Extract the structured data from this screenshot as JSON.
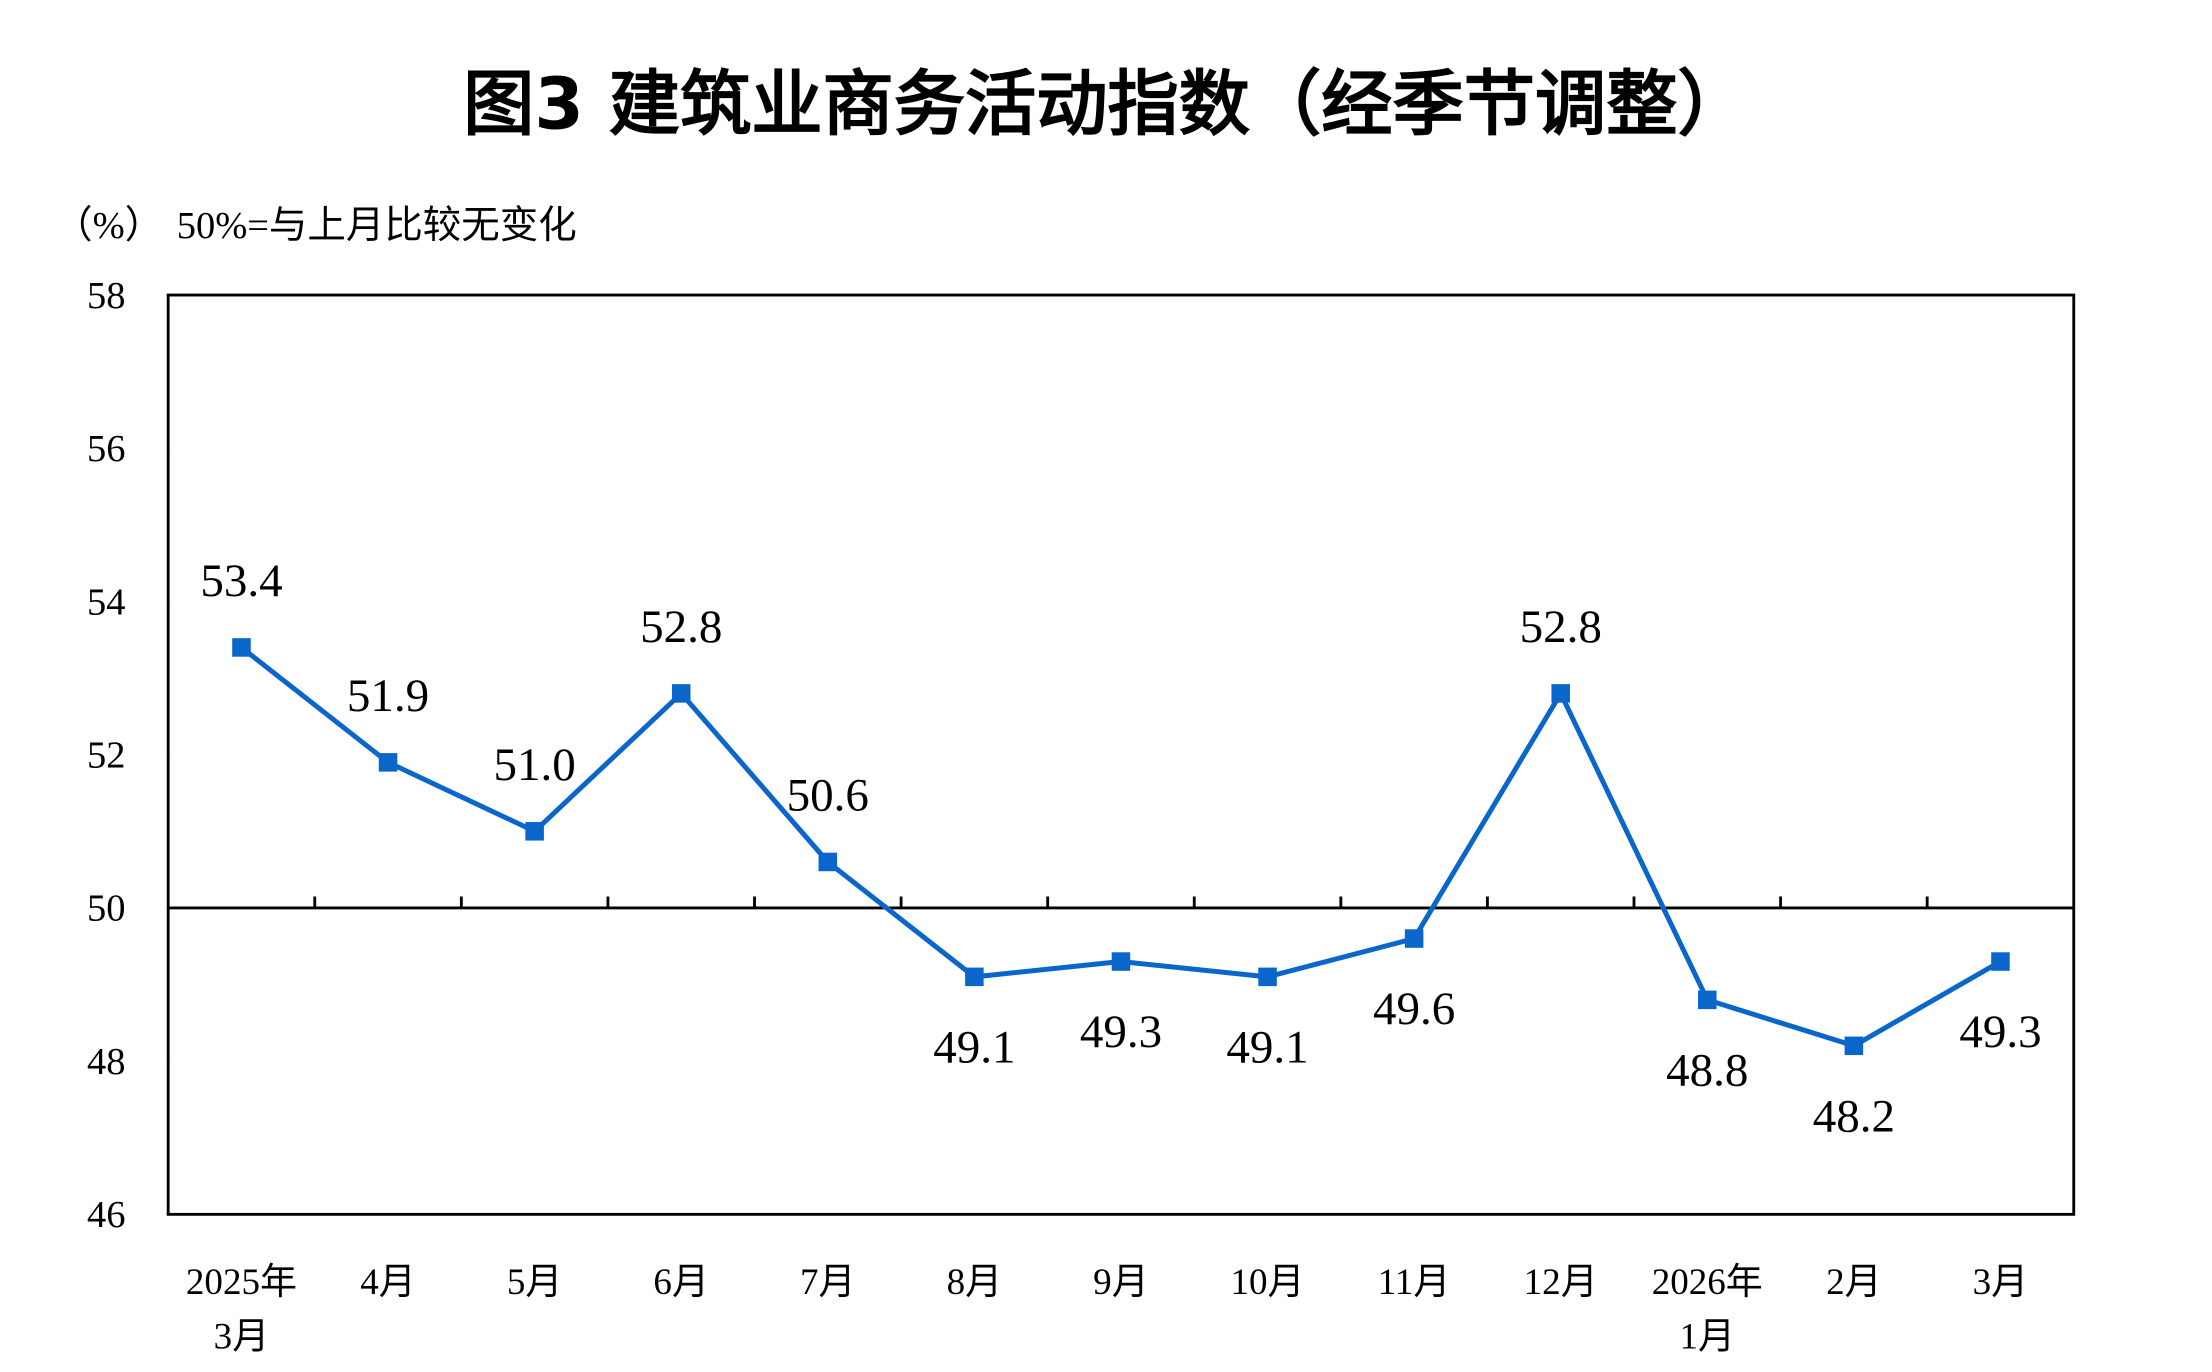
{
  "chart_data": {
    "type": "line",
    "title": "图3  建筑业商务活动指数（经季节调整）",
    "y_label": "（%）",
    "annotation": "50%=与上月比较无变化",
    "categories": [
      "2025年\n3月",
      "4月",
      "5月",
      "6月",
      "7月",
      "8月",
      "9月",
      "10月",
      "11月",
      "12月",
      "2026年\n1月",
      "2月",
      "3月"
    ],
    "series": [
      {
        "name": "建筑业商务活动指数",
        "color": "#0b66cc",
        "values": [
          53.4,
          51.9,
          51.0,
          52.8,
          50.6,
          49.1,
          49.3,
          49.1,
          49.6,
          52.8,
          48.8,
          48.2,
          49.3
        ],
        "value_labels": [
          "53.4",
          "51.9",
          "51.0",
          "52.8",
          "50.6",
          "49.1",
          "49.3",
          "49.1",
          "49.6",
          "52.8",
          "48.8",
          "48.2",
          "49.3"
        ]
      }
    ],
    "reference_line": 50,
    "ylim": [
      46,
      58
    ],
    "yticks": [
      46,
      48,
      50,
      52,
      54,
      56,
      58
    ]
  }
}
